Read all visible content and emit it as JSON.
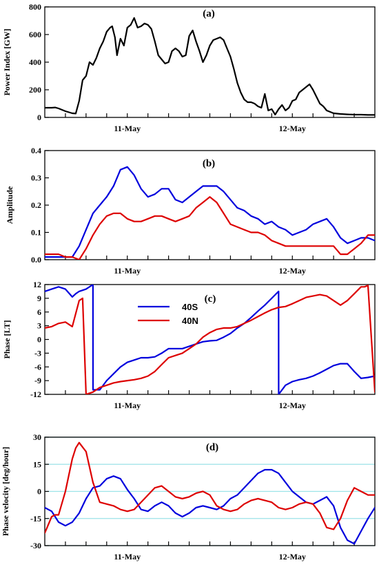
{
  "chart_data": [
    {
      "type": "line",
      "panel_label": "(a)",
      "ylabel": "Power Index [GW]",
      "xlim": [
        0,
        48
      ],
      "ylim": [
        0,
        800
      ],
      "yticks": [
        0,
        200,
        400,
        600,
        800
      ],
      "xtick_labels": [
        {
          "x": 12,
          "label": "11-May"
        },
        {
          "x": 36,
          "label": "12-May"
        }
      ],
      "grid": false,
      "series": [
        {
          "color": "#000000",
          "x": [
            0,
            1,
            1.5,
            2,
            3,
            4,
            4.5,
            5,
            5.5,
            6,
            6.5,
            7,
            7.5,
            8,
            8.5,
            9,
            9.5,
            9.8,
            10.2,
            10.5,
            11,
            11.5,
            12,
            12.5,
            13,
            13.5,
            14,
            14.5,
            15,
            15.5,
            16,
            16.5,
            17,
            17.5,
            18,
            18.5,
            19,
            19.5,
            20,
            20.5,
            21,
            21.5,
            22,
            22.5,
            23,
            23.5,
            24,
            24.5,
            25,
            25.5,
            26,
            26.5,
            27,
            27.5,
            28,
            28.5,
            29,
            29.5,
            30,
            30.5,
            31,
            31.5,
            32,
            32.5,
            33,
            33.5,
            34,
            34.5,
            35,
            35.5,
            36,
            36.5,
            37,
            37.5,
            38,
            38.5,
            39,
            39.5,
            40,
            40.5,
            41,
            42,
            43,
            44,
            45,
            46,
            47,
            48
          ],
          "values": [
            70,
            70,
            72,
            65,
            45,
            30,
            28,
            120,
            270,
            300,
            400,
            380,
            430,
            500,
            550,
            620,
            650,
            660,
            580,
            450,
            570,
            520,
            650,
            670,
            720,
            650,
            660,
            680,
            670,
            640,
            550,
            450,
            420,
            390,
            400,
            480,
            500,
            480,
            440,
            450,
            590,
            630,
            550,
            480,
            400,
            450,
            520,
            560,
            570,
            580,
            560,
            500,
            440,
            350,
            250,
            180,
            130,
            110,
            110,
            100,
            80,
            70,
            170,
            50,
            60,
            20,
            60,
            90,
            50,
            70,
            120,
            130,
            180,
            200,
            220,
            240,
            200,
            150,
            100,
            80,
            50,
            30,
            25,
            22,
            20,
            20,
            18,
            18
          ]
        }
      ]
    },
    {
      "type": "line",
      "panel_label": "(b)",
      "ylabel": "Amplitude",
      "xlim": [
        0,
        48
      ],
      "ylim": [
        0,
        0.4
      ],
      "yticks": [
        0,
        0.1,
        0.2,
        0.3,
        0.4
      ],
      "xtick_labels": [
        {
          "x": 12,
          "label": "11-May"
        },
        {
          "x": 36,
          "label": "12-May"
        }
      ],
      "grid": false,
      "series": [
        {
          "name": "40S",
          "color": "#0000dd",
          "x": [
            0,
            1,
            2,
            3,
            4,
            5,
            6,
            7,
            8,
            9,
            10,
            11,
            11.5,
            12,
            13,
            14,
            15,
            16,
            17,
            18,
            19,
            20,
            21,
            22,
            23,
            24,
            25,
            26,
            27,
            28,
            29,
            30,
            31,
            32,
            33,
            34,
            35,
            36,
            37,
            38,
            39,
            40,
            41,
            42,
            43,
            44,
            45,
            46,
            47,
            48
          ],
          "values": [
            0.01,
            0.01,
            0.01,
            0.01,
            0.01,
            0.05,
            0.11,
            0.17,
            0.2,
            0.23,
            0.27,
            0.33,
            0.335,
            0.34,
            0.31,
            0.26,
            0.23,
            0.24,
            0.26,
            0.26,
            0.22,
            0.21,
            0.23,
            0.25,
            0.27,
            0.27,
            0.27,
            0.25,
            0.22,
            0.19,
            0.18,
            0.16,
            0.15,
            0.13,
            0.14,
            0.12,
            0.11,
            0.09,
            0.1,
            0.11,
            0.13,
            0.14,
            0.15,
            0.12,
            0.08,
            0.06,
            0.07,
            0.08,
            0.08,
            0.07
          ]
        },
        {
          "name": "40N",
          "color": "#dd0000",
          "x": [
            0,
            1,
            2,
            3,
            4,
            5,
            6,
            7,
            8,
            9,
            10,
            11,
            12,
            13,
            14,
            15,
            16,
            17,
            18,
            19,
            20,
            21,
            22,
            23,
            24,
            25,
            26,
            27,
            28,
            29,
            30,
            31,
            32,
            33,
            34,
            35,
            36,
            37,
            38,
            39,
            40,
            41,
            42,
            43,
            44,
            45,
            46,
            47,
            48
          ],
          "values": [
            0.02,
            0.02,
            0.02,
            0.01,
            0.01,
            0.0,
            0.04,
            0.09,
            0.13,
            0.16,
            0.17,
            0.17,
            0.15,
            0.14,
            0.14,
            0.15,
            0.16,
            0.16,
            0.15,
            0.14,
            0.15,
            0.16,
            0.19,
            0.21,
            0.23,
            0.21,
            0.17,
            0.13,
            0.12,
            0.11,
            0.1,
            0.1,
            0.09,
            0.07,
            0.06,
            0.05,
            0.05,
            0.05,
            0.05,
            0.05,
            0.05,
            0.05,
            0.05,
            0.02,
            0.02,
            0.04,
            0.06,
            0.09,
            0.09
          ]
        }
      ]
    },
    {
      "type": "line",
      "panel_label": "(c)",
      "ylabel": "Phase [LT]",
      "xlim": [
        0,
        48
      ],
      "ylim": [
        -12,
        12
      ],
      "yticks": [
        -12,
        -9,
        -6,
        -3,
        0,
        3,
        6,
        9,
        12
      ],
      "xtick_labels": [
        {
          "x": 12,
          "label": "11-May"
        },
        {
          "x": 36,
          "label": "12-May"
        }
      ],
      "grid": false,
      "legend": "center-left",
      "series": [
        {
          "name": "40S",
          "color": "#0000dd",
          "x": [
            0,
            1,
            2,
            3,
            4,
            4.5,
            5,
            6,
            7,
            7.01,
            8,
            9,
            10,
            11,
            12,
            13,
            14,
            15,
            16,
            17,
            18,
            19,
            20,
            21,
            22,
            23,
            24,
            25,
            26,
            27,
            28,
            29,
            30,
            31,
            32,
            33,
            34,
            34.01,
            35,
            36,
            37,
            38,
            39,
            40,
            41,
            42,
            43,
            44,
            45,
            46,
            47,
            48
          ],
          "values": [
            10.5,
            11,
            11.5,
            11,
            9.3,
            10,
            10.5,
            11,
            12,
            -11,
            -11,
            -9,
            -7.5,
            -6,
            -5,
            -4.5,
            -4,
            -4,
            -3.8,
            -3,
            -2,
            -2,
            -2,
            -1.5,
            -1,
            -0.5,
            -0.3,
            -0.2,
            0.5,
            1.3,
            2.5,
            3.5,
            4.8,
            6.2,
            7.5,
            9,
            10.5,
            -12,
            -10,
            -9.2,
            -8.8,
            -8.5,
            -8,
            -7.3,
            -6.5,
            -5.7,
            -5.3,
            -5.3,
            -7,
            -8.5,
            -8.3,
            -8
          ]
        },
        {
          "name": "40N",
          "color": "#dd0000",
          "x": [
            0,
            1,
            2,
            3,
            4,
            5,
            5.5,
            6,
            7,
            8,
            9,
            10,
            11,
            12,
            13,
            14,
            15,
            16,
            17,
            18,
            19,
            20,
            21,
            22,
            23,
            24,
            25,
            26,
            27,
            28,
            29,
            30,
            31,
            32,
            33,
            34,
            35,
            36,
            37,
            38,
            39,
            40,
            41,
            42,
            43,
            44,
            45,
            46,
            46.5,
            47,
            48
          ],
          "values": [
            2.5,
            2.8,
            3.5,
            3.8,
            2.8,
            8.5,
            9,
            -12,
            -11.5,
            -10.5,
            -10,
            -9.5,
            -9.2,
            -9,
            -8.8,
            -8.5,
            -8,
            -7,
            -5.5,
            -4,
            -3.5,
            -3,
            -2,
            -1,
            0.5,
            1.5,
            2.2,
            2.5,
            2.5,
            2.8,
            3.5,
            4.2,
            5,
            5.8,
            6.5,
            7,
            7.2,
            7.8,
            8.5,
            9.2,
            9.5,
            9.8,
            9.5,
            8.5,
            7.5,
            8.5,
            10,
            11.5,
            11.5,
            11.8,
            -11.5
          ]
        }
      ]
    },
    {
      "type": "line",
      "panel_label": "(d)",
      "ylabel": "Phase velocity [deg/hour]",
      "xlim": [
        0,
        48
      ],
      "ylim": [
        -30,
        30
      ],
      "yticks": [
        -30,
        -15,
        0,
        15,
        30
      ],
      "xtick_labels": [
        {
          "x": 12,
          "label": "11-May"
        },
        {
          "x": 36,
          "label": "12-May"
        }
      ],
      "grid": true,
      "grid_color": "#9be3e8",
      "series": [
        {
          "name": "40S",
          "color": "#0000dd",
          "x": [
            0,
            1,
            2,
            3,
            4,
            5,
            6,
            7,
            8,
            9,
            10,
            11,
            12,
            13,
            14,
            15,
            16,
            17,
            18,
            19,
            20,
            21,
            22,
            23,
            24,
            25,
            26,
            27,
            28,
            29,
            30,
            31,
            32,
            33,
            34,
            35,
            36,
            37,
            38,
            39,
            40,
            41,
            42,
            43,
            44,
            45,
            46,
            47,
            48
          ],
          "values": [
            -9,
            -11,
            -17,
            -19,
            -17,
            -12,
            -4,
            2,
            3,
            7,
            8.5,
            7,
            1,
            -4,
            -10,
            -11,
            -8,
            -6,
            -8,
            -12,
            -14,
            -12,
            -9,
            -8,
            -9,
            -10,
            -8,
            -4,
            -2,
            2,
            6,
            10,
            12,
            12,
            10,
            5,
            0,
            -3,
            -6,
            -7,
            -5,
            -3,
            -8,
            -20,
            -27,
            -29,
            -22,
            -15,
            -9
          ]
        },
        {
          "name": "40N",
          "color": "#dd0000",
          "x": [
            0,
            1,
            1.5,
            2,
            3,
            4,
            4.5,
            5,
            6,
            7,
            8,
            9,
            10,
            11,
            12,
            13,
            14,
            15,
            16,
            17,
            18,
            19,
            20,
            21,
            22,
            23,
            24,
            25,
            26,
            27,
            28,
            29,
            30,
            31,
            32,
            33,
            34,
            35,
            36,
            37,
            38,
            39,
            40,
            41,
            42,
            43,
            44,
            45,
            46,
            47,
            48
          ],
          "values": [
            -23,
            -14,
            -13,
            -13,
            0,
            18,
            24,
            27,
            22,
            5,
            -6,
            -7,
            -8,
            -10,
            -11,
            -10,
            -6,
            -2,
            2,
            3,
            0,
            -3,
            -4,
            -3,
            -1,
            0,
            -2,
            -8,
            -10,
            -11,
            -10,
            -7,
            -5,
            -4,
            -5,
            -6,
            -9,
            -10,
            -9,
            -7,
            -6,
            -7,
            -12,
            -20,
            -21,
            -15,
            -5,
            2,
            0,
            -2,
            -2
          ]
        }
      ]
    }
  ]
}
